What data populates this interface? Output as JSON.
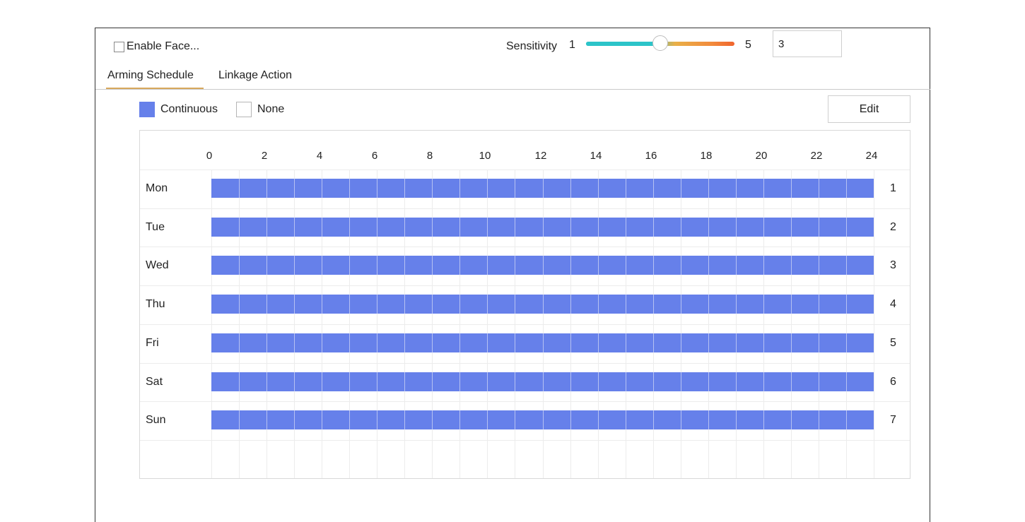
{
  "enable": {
    "label": "Enable Face..."
  },
  "sensitivity": {
    "label": "Sensitivity",
    "min": "1",
    "max": "5",
    "value": 3,
    "value_text": "3"
  },
  "tabs": [
    {
      "label": "Arming Schedule"
    },
    {
      "label": "Linkage Action"
    }
  ],
  "legend": {
    "continuous": "Continuous",
    "none": "None"
  },
  "edit_label": "Edit",
  "schedule": {
    "hour_ticks": [
      "0",
      "2",
      "4",
      "6",
      "8",
      "10",
      "12",
      "14",
      "16",
      "18",
      "20",
      "22",
      "24"
    ],
    "days": [
      {
        "label": "Mon",
        "num": "1",
        "start_hour": 0,
        "end_hour": 24
      },
      {
        "label": "Tue",
        "num": "2",
        "start_hour": 0,
        "end_hour": 24
      },
      {
        "label": "Wed",
        "num": "3",
        "start_hour": 0,
        "end_hour": 24
      },
      {
        "label": "Thu",
        "num": "4",
        "start_hour": 0,
        "end_hour": 24
      },
      {
        "label": "Fri",
        "num": "5",
        "start_hour": 0,
        "end_hour": 24
      },
      {
        "label": "Sat",
        "num": "6",
        "start_hour": 0,
        "end_hour": 24
      },
      {
        "label": "Sun",
        "num": "7",
        "start_hour": 0,
        "end_hour": 24
      }
    ]
  },
  "colors": {
    "continuous": "#6680ea",
    "tab_underline": "#d8a85c",
    "slider_low": "#2cc4c9",
    "slider_high": "#f0642d"
  }
}
